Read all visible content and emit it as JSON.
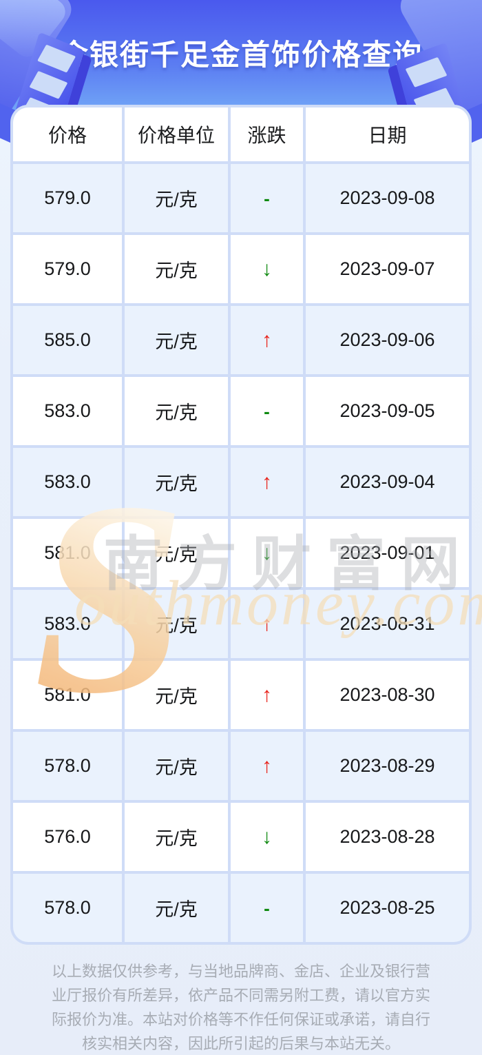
{
  "header": {
    "title": "金银街千足金首饰价格查询"
  },
  "table": {
    "columns": [
      "价格",
      "价格单位",
      "涨跌",
      "日期"
    ],
    "rows": [
      {
        "price": "579.0",
        "unit": "元/克",
        "change": "dash",
        "date": "2023-09-08"
      },
      {
        "price": "579.0",
        "unit": "元/克",
        "change": "down",
        "date": "2023-09-07"
      },
      {
        "price": "585.0",
        "unit": "元/克",
        "change": "up",
        "date": "2023-09-06"
      },
      {
        "price": "583.0",
        "unit": "元/克",
        "change": "dash",
        "date": "2023-09-05"
      },
      {
        "price": "583.0",
        "unit": "元/克",
        "change": "up",
        "date": "2023-09-04"
      },
      {
        "price": "581.0",
        "unit": "元/克",
        "change": "down",
        "date": "2023-09-01"
      },
      {
        "price": "583.0",
        "unit": "元/克",
        "change": "up",
        "date": "2023-08-31"
      },
      {
        "price": "581.0",
        "unit": "元/克",
        "change": "up",
        "date": "2023-08-30"
      },
      {
        "price": "578.0",
        "unit": "元/克",
        "change": "up",
        "date": "2023-08-29"
      },
      {
        "price": "576.0",
        "unit": "元/克",
        "change": "down",
        "date": "2023-08-28"
      },
      {
        "price": "578.0",
        "unit": "元/克",
        "change": "dash",
        "date": "2023-08-25"
      }
    ],
    "change_glyphs": {
      "up": "↑",
      "down": "↓",
      "dash": "-"
    },
    "colors": {
      "up": "#e8231b",
      "down": "#0f8a10",
      "accent_blue": "#4a59ee",
      "alt_row": "#eaf2fd",
      "grid_line": "#cfdcf7"
    }
  },
  "watermark": {
    "s": "S",
    "cn": "南方财富网",
    "en": "outhmoney.com"
  },
  "footer": {
    "disclaimer": "以上数据仅供参考，与当地品牌商、金店、企业及银行营业厅报价有所差异，依产品不同需另附工费，请以官方实际报价为准。本站对价格等不作任何保证或承诺，请自行核实相关内容，因此所引起的后果与本站无关。"
  }
}
